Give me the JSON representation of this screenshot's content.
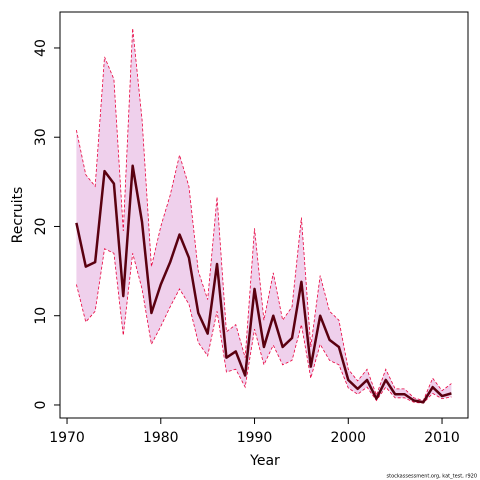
{
  "chart_data": {
    "type": "line",
    "x_label": "Year",
    "y_label": "Recruits",
    "footer": "stockassessment.org, kat_test, r920",
    "x": [
      1971,
      1972,
      1973,
      1974,
      1975,
      1976,
      1977,
      1978,
      1979,
      1980,
      1981,
      1982,
      1983,
      1984,
      1985,
      1986,
      1987,
      1988,
      1989,
      1990,
      1991,
      1992,
      1993,
      1994,
      1995,
      1996,
      1997,
      1998,
      1999,
      2000,
      2001,
      2002,
      2003,
      2004,
      2005,
      2006,
      2007,
      2008,
      2009,
      2010,
      2011
    ],
    "series": [
      {
        "color": "#5a0010",
        "values": [
          20.4,
          15.5,
          16,
          26.2,
          24.8,
          12.2,
          26.8,
          20.5,
          10.3,
          13.5,
          16,
          19.1,
          16.5,
          10.3,
          8,
          15.8,
          5.3,
          6,
          3.3,
          13,
          6.5,
          10,
          6.5,
          7.5,
          13.8,
          4.3,
          10,
          7.3,
          6.5,
          2.8,
          1.8,
          2.8,
          0.7,
          2.8,
          1.2,
          1.2,
          0.5,
          0.3,
          2,
          1,
          1.3
        ]
      },
      {
        "color": "#e8003c",
        "values": [
          13.5,
          9.3,
          10.5,
          17.5,
          17,
          7.8,
          17,
          13,
          6.8,
          8.8,
          11,
          13,
          11.3,
          7,
          5.5,
          10.5,
          3.7,
          4,
          2,
          8.5,
          4.5,
          6.7,
          4.5,
          5,
          9,
          3,
          6.8,
          5,
          4.5,
          1.9,
          1.2,
          2,
          0.5,
          2,
          0.8,
          0.8,
          0.3,
          0.2,
          1.3,
          0.7,
          0.9
        ]
      },
      {
        "color": "#e8003c",
        "values": [
          30.8,
          25.8,
          24.5,
          39,
          36.5,
          19.5,
          42.2,
          32,
          15.5,
          20,
          23.5,
          28,
          24.5,
          15,
          11.8,
          23.3,
          8.2,
          9,
          5.3,
          19.8,
          9.5,
          14.8,
          9.5,
          11,
          21,
          6.5,
          14.5,
          10.5,
          9.5,
          4,
          2.7,
          4,
          1.1,
          4,
          1.8,
          1.8,
          0.8,
          0.5,
          3,
          1.6,
          2.4
        ]
      }
    ],
    "band_color": "#efd0ec",
    "xlim": [
      1969.25,
      2012.77
    ],
    "ylim": [
      -1.46,
      44.03
    ],
    "xticks": [
      1970,
      1980,
      1990,
      2000,
      2010
    ],
    "yticks": [
      0,
      10,
      20,
      30,
      40
    ]
  }
}
